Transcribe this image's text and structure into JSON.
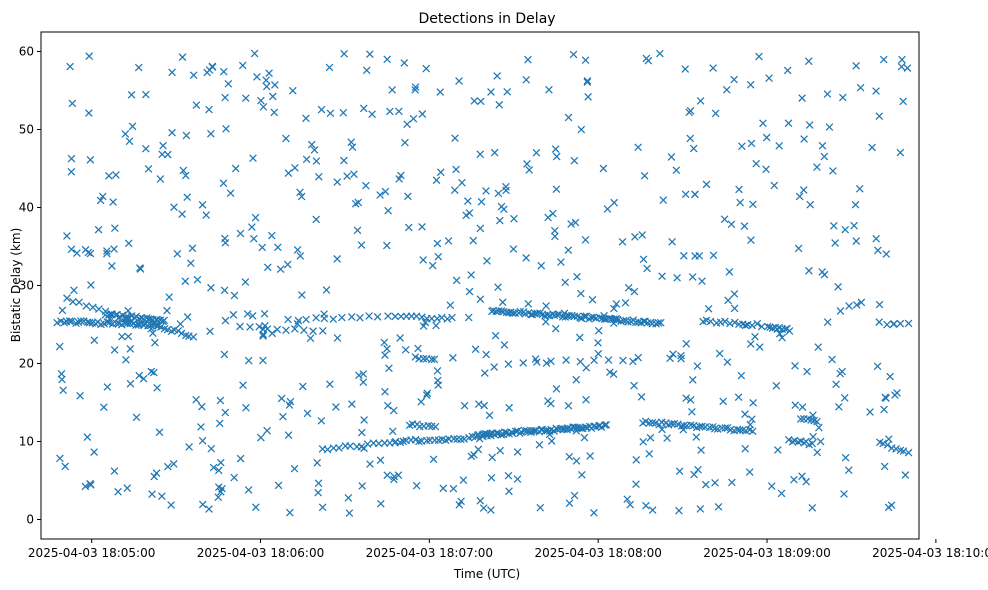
{
  "chart_data": {
    "type": "scatter",
    "title": "Detections in Delay",
    "xlabel": "Time (UTC)",
    "ylabel": "Bistatic Delay (km)",
    "x_unit": "time",
    "xlim": [
      "2025-04-03 18:04:42",
      "2025-04-03 18:09:54"
    ],
    "ylim": [
      -2.5,
      62.5
    ],
    "x_ticks": [
      "2025-04-03 18:05:00",
      "2025-04-03 18:06:00",
      "2025-04-03 18:07:00",
      "2025-04-03 18:08:00",
      "2025-04-03 18:09:00",
      "2025-04-03 18:10:00"
    ],
    "y_ticks": [
      0,
      10,
      20,
      30,
      40,
      50,
      60
    ],
    "marker": "x",
    "color": "#1f77b4",
    "grid": false,
    "legend": "none",
    "seed": 12345,
    "series": [
      {
        "kind": "track",
        "x_start": "2025-04-03 18:04:48",
        "x_end": "2025-04-03 18:05:24",
        "y_start": 25.4,
        "y_end": 24.9,
        "count": 36
      },
      {
        "kind": "track",
        "x_start": "2025-04-03 18:04:51",
        "x_end": "2025-04-03 18:05:21",
        "y_start": 28.3,
        "y_end": 24.5,
        "count": 14
      },
      {
        "kind": "track",
        "x_start": "2025-04-03 18:05:05",
        "x_end": "2025-04-03 18:05:26",
        "y_start": 26.3,
        "y_end": 25.5,
        "count": 26
      },
      {
        "kind": "track",
        "x_start": "2025-04-03 18:05:22",
        "x_end": "2025-04-03 18:05:36",
        "y_start": 25.0,
        "y_end": 23.5,
        "count": 12
      },
      {
        "kind": "track",
        "x_start": "2025-04-03 18:05:53",
        "x_end": "2025-04-03 18:06:22",
        "y_start": 24.8,
        "y_end": 24.1,
        "count": 10
      },
      {
        "kind": "track",
        "x_start": "2025-04-03 18:06:10",
        "x_end": "2025-04-03 18:06:45",
        "y_start": 25.6,
        "y_end": 26.0,
        "count": 12
      },
      {
        "kind": "track",
        "x_start": "2025-04-03 18:06:48",
        "x_end": "2025-04-03 18:07:08",
        "y_start": 26.1,
        "y_end": 25.8,
        "count": 12
      },
      {
        "kind": "track",
        "x_start": "2025-04-03 18:07:22",
        "x_end": "2025-04-03 18:08:22",
        "y_start": 26.8,
        "y_end": 25.2,
        "count": 70
      },
      {
        "kind": "track",
        "x_start": "2025-04-03 18:08:37",
        "x_end": "2025-04-03 18:08:58",
        "y_start": 25.5,
        "y_end": 24.9,
        "count": 14
      },
      {
        "kind": "track",
        "x_start": "2025-04-03 18:09:00",
        "x_end": "2025-04-03 18:09:08",
        "y_start": 24.8,
        "y_end": 24.3,
        "count": 10
      },
      {
        "kind": "track",
        "x_start": "2025-04-03 18:06:22",
        "x_end": "2025-04-03 18:06:48",
        "y_start": 9.0,
        "y_end": 9.9,
        "count": 14
      },
      {
        "kind": "track",
        "x_start": "2025-04-03 18:06:48",
        "x_end": "2025-04-03 18:07:22",
        "y_start": 10.0,
        "y_end": 10.6,
        "count": 26
      },
      {
        "kind": "track",
        "x_start": "2025-04-03 18:06:53",
        "x_end": "2025-04-03 18:07:02",
        "y_start": 12.2,
        "y_end": 11.8,
        "count": 8
      },
      {
        "kind": "track",
        "x_start": "2025-04-03 18:07:17",
        "x_end": "2025-04-03 18:08:03",
        "y_start": 10.8,
        "y_end": 12.0,
        "count": 62
      },
      {
        "kind": "track",
        "x_start": "2025-04-03 18:08:16",
        "x_end": "2025-04-03 18:08:55",
        "y_start": 12.5,
        "y_end": 11.3,
        "count": 36
      },
      {
        "kind": "track",
        "x_start": "2025-04-03 18:06:55",
        "x_end": "2025-04-03 18:07:02",
        "y_start": 20.8,
        "y_end": 20.6,
        "count": 6
      },
      {
        "kind": "track",
        "x_start": "2025-04-03 18:07:28",
        "x_end": "2025-04-03 18:08:14",
        "y_start": 20.0,
        "y_end": 20.6,
        "count": 10
      },
      {
        "kind": "track",
        "x_start": "2025-04-03 18:09:08",
        "x_end": "2025-04-03 18:09:16",
        "y_start": 10.2,
        "y_end": 9.7,
        "count": 9
      },
      {
        "kind": "track",
        "x_start": "2025-04-03 18:09:12",
        "x_end": "2025-04-03 18:09:18",
        "y_start": 12.9,
        "y_end": 12.5,
        "count": 6
      },
      {
        "kind": "track",
        "x_start": "2025-04-03 18:09:40",
        "x_end": "2025-04-03 18:09:50",
        "y_start": 9.8,
        "y_end": 8.4,
        "count": 8
      },
      {
        "kind": "track",
        "x_start": "2025-04-03 18:09:40",
        "x_end": "2025-04-03 18:09:50",
        "y_start": 25.2,
        "y_end": 25.0,
        "count": 5
      },
      {
        "kind": "clutter",
        "x_min": "2025-04-03 18:04:47",
        "x_max": "2025-04-03 18:09:50",
        "y_min": 0.8,
        "y_max": 59.8,
        "count": 660
      }
    ]
  }
}
